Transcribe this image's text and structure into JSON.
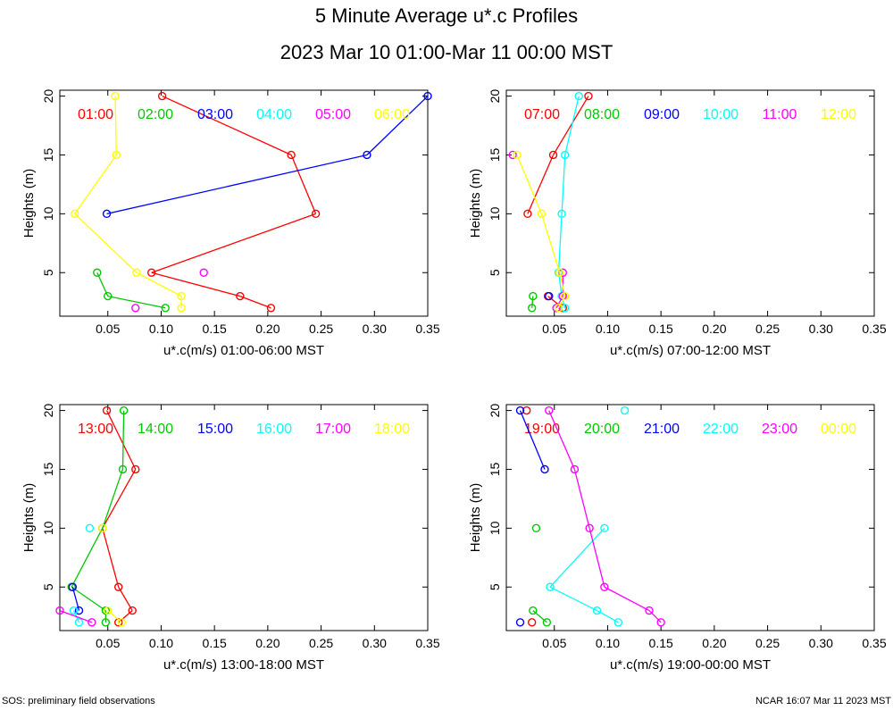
{
  "title": "5 Minute Average u*.c Profiles",
  "subtitle": "2023 Mar 10 01:00-Mar 11 00:00 MST",
  "footer_left": "SOS: preliminary field observations",
  "footer_right": "NCAR 16:07 Mar 11 2023 MST",
  "colors": [
    "#ff0000",
    "#00c800",
    "#0000ff",
    "#00ffff",
    "#ff00ff",
    "#ffff00"
  ],
  "chart_data": [
    {
      "type": "scatter",
      "xlabel": "u*.c(m/s) 01:00-06:00 MST",
      "ylabel": "Heights (m)",
      "xlim": [
        0.005,
        0.35
      ],
      "ylim": [
        1.3,
        20.5
      ],
      "xticks": [
        "0.05",
        "0.10",
        "0.15",
        "0.20",
        "0.25",
        "0.30",
        "0.35"
      ],
      "yticks": [
        "5",
        "10",
        "15",
        "20"
      ],
      "series": [
        {
          "name": "01:00",
          "heights": [
            2,
            3,
            5,
            10,
            15,
            20
          ],
          "values": [
            0.203,
            0.174,
            0.091,
            0.245,
            0.222,
            0.101
          ]
        },
        {
          "name": "02:00",
          "heights": [
            2,
            3,
            5
          ],
          "values": [
            0.104,
            0.05,
            0.04
          ]
        },
        {
          "name": "03:00",
          "heights": [
            10,
            15,
            20
          ],
          "values": [
            0.049,
            0.293,
            0.35
          ]
        },
        {
          "name": "04:00",
          "heights": [],
          "values": []
        },
        {
          "name": "05:00",
          "heights": [
            2,
            5
          ],
          "values": [
            0.076,
            0.14
          ]
        },
        {
          "name": "06:00",
          "heights": [
            2,
            3,
            5,
            10,
            15,
            20
          ],
          "values": [
            0.119,
            0.119,
            0.077,
            0.019,
            0.058,
            0.057
          ]
        }
      ]
    },
    {
      "type": "scatter",
      "xlabel": "u*.c(m/s) 07:00-12:00 MST",
      "ylabel": "Heights (m)",
      "xlim": [
        0.005,
        0.35
      ],
      "ylim": [
        1.3,
        20.5
      ],
      "xticks": [
        "0.05",
        "0.10",
        "0.15",
        "0.20",
        "0.25",
        "0.30",
        "0.35"
      ],
      "yticks": [
        "5",
        "10",
        "15",
        "20"
      ],
      "series": [
        {
          "name": "07:00",
          "heights": [
            2,
            3,
            10,
            15,
            20
          ],
          "values": [
            0.058,
            0.044,
            0.025,
            0.049,
            0.082
          ]
        },
        {
          "name": "08:00",
          "heights": [
            2,
            3
          ],
          "values": [
            0.029,
            0.03
          ]
        },
        {
          "name": "09:00",
          "heights": [
            3
          ],
          "values": [
            0.045
          ]
        },
        {
          "name": "10:00",
          "heights": [
            2,
            3,
            5,
            10,
            15,
            20
          ],
          "values": [
            0.06,
            0.057,
            0.054,
            0.057,
            0.06,
            0.073
          ]
        },
        {
          "name": "11:00",
          "heights": [
            2,
            3,
            5,
            15
          ],
          "values": [
            0.052,
            0.058,
            0.058,
            0.011
          ]
        },
        {
          "name": "12:00",
          "heights": [
            2,
            3,
            5,
            10,
            15
          ],
          "values": [
            0.054,
            0.06,
            0.055,
            0.038,
            0.015
          ]
        }
      ]
    },
    {
      "type": "scatter",
      "xlabel": "u*.c(m/s) 13:00-18:00 MST",
      "ylabel": "Heights (m)",
      "xlim": [
        0.005,
        0.35
      ],
      "ylim": [
        1.3,
        20.5
      ],
      "xticks": [
        "0.05",
        "0.10",
        "0.15",
        "0.20",
        "0.25",
        "0.30",
        "0.35"
      ],
      "yticks": [
        "5",
        "10",
        "15",
        "20"
      ],
      "series": [
        {
          "name": "13:00",
          "heights": [
            2,
            3,
            5,
            10,
            15,
            20
          ],
          "values": [
            0.06,
            0.073,
            0.06,
            0.045,
            0.076,
            0.049
          ]
        },
        {
          "name": "14:00",
          "heights": [
            2,
            3,
            5,
            10,
            15,
            20
          ],
          "values": [
            0.048,
            0.048,
            0.016,
            0.045,
            0.064,
            0.065
          ]
        },
        {
          "name": "15:00",
          "heights": [
            3,
            5
          ],
          "values": [
            0.023,
            0.017
          ]
        },
        {
          "name": "16:00",
          "heights": [
            2,
            3,
            10
          ],
          "values": [
            0.023,
            0.018,
            0.033
          ]
        },
        {
          "name": "17:00",
          "heights": [
            2,
            3
          ],
          "values": [
            0.035,
            0.005
          ]
        },
        {
          "name": "18:00",
          "heights": [
            2,
            3,
            10
          ],
          "values": [
            0.063,
            0.05,
            0.045
          ]
        }
      ]
    },
    {
      "type": "scatter",
      "xlabel": "u*.c(m/s) 19:00-00:00 MST",
      "ylabel": "Heights (m)",
      "xlim": [
        0.005,
        0.35
      ],
      "ylim": [
        1.3,
        20.5
      ],
      "xticks": [
        "0.05",
        "0.10",
        "0.15",
        "0.20",
        "0.25",
        "0.30",
        "0.35"
      ],
      "yticks": [
        "5",
        "10",
        "15",
        "20"
      ],
      "series": [
        {
          "name": "19:00",
          "heights": [
            2,
            20
          ],
          "values": [
            0.029,
            0.024
          ]
        },
        {
          "name": "20:00",
          "heights": [
            2,
            3,
            10
          ],
          "values": [
            0.043,
            0.03,
            0.033
          ]
        },
        {
          "name": "21:00",
          "heights": [
            2,
            15,
            20
          ],
          "values": [
            0.018,
            0.041,
            0.018
          ]
        },
        {
          "name": "22:00",
          "heights": [
            2,
            3,
            5,
            10,
            20
          ],
          "values": [
            0.11,
            0.09,
            0.046,
            0.097,
            0.116
          ]
        },
        {
          "name": "23:00",
          "heights": [
            2,
            3,
            5,
            10,
            15,
            20
          ],
          "values": [
            0.15,
            0.139,
            0.097,
            0.083,
            0.069,
            0.045
          ]
        },
        {
          "name": "00:00",
          "heights": [],
          "values": []
        }
      ]
    }
  ]
}
